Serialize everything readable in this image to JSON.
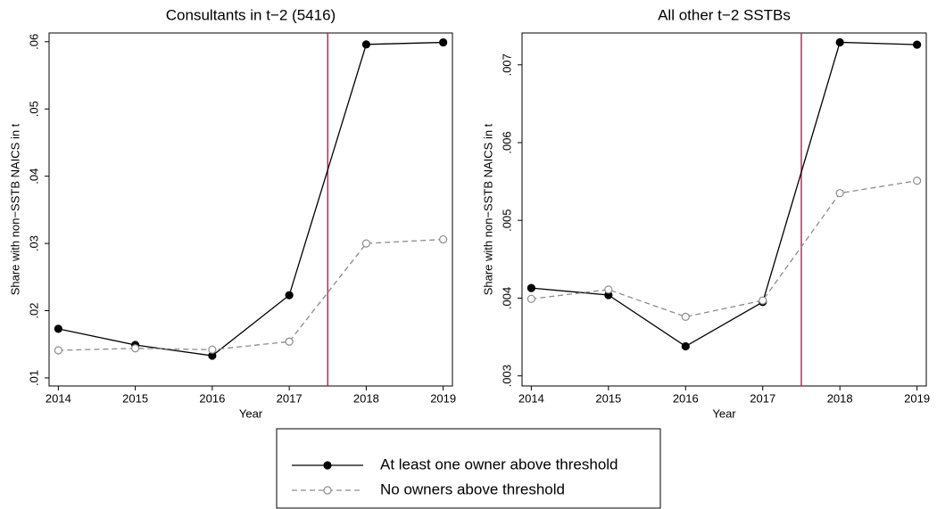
{
  "chart_data": [
    {
      "type": "line",
      "title": "Consultants in t−2 (5416)",
      "xlabel": "Year",
      "ylabel": "Share with non−SSTB NAICS in t",
      "x": [
        2014,
        2015,
        2016,
        2017,
        2018,
        2019
      ],
      "series": [
        {
          "name": "At least one owner above threshold",
          "color": "#000000",
          "values": [
            0.0173,
            0.0149,
            0.0133,
            0.0223,
            0.0596,
            0.0599
          ]
        },
        {
          "name": "No owners above threshold",
          "color": "#8c8c8c",
          "values": [
            0.0141,
            0.0144,
            0.0142,
            0.0154,
            0.03,
            0.0306
          ]
        }
      ],
      "xlim": [
        2013.88,
        2019.12
      ],
      "xticks": [
        2014,
        2015,
        2016,
        2017,
        2018,
        2019
      ],
      "ylim": [
        0.0088,
        0.0613
      ],
      "yticks": [
        {
          "value": 0.01,
          "label": ".01"
        },
        {
          "value": 0.02,
          "label": ".02"
        },
        {
          "value": 0.03,
          "label": ".03"
        },
        {
          "value": 0.04,
          "label": ".04"
        },
        {
          "value": 0.05,
          "label": ".05"
        },
        {
          "value": 0.06,
          "label": ".06"
        }
      ],
      "vline": 2017.5,
      "vline_color": "#c8245a"
    },
    {
      "type": "line",
      "title": "All other t−2 SSTBs",
      "xlabel": "Year",
      "ylabel": "Share with non−SSTB NAICS in t",
      "x": [
        2014,
        2015,
        2016,
        2017,
        2018,
        2019
      ],
      "series": [
        {
          "name": "At least one owner above threshold",
          "color": "#000000",
          "values": [
            0.00413,
            0.00404,
            0.00338,
            0.00395,
            0.00729,
            0.00726
          ]
        },
        {
          "name": "No owners above threshold",
          "color": "#8c8c8c",
          "values": [
            0.00399,
            0.00411,
            0.00376,
            0.00397,
            0.00535,
            0.00551
          ]
        }
      ],
      "xlim": [
        2013.88,
        2019.12
      ],
      "xticks": [
        2014,
        2015,
        2016,
        2017,
        2018,
        2019
      ],
      "ylim": [
        0.00287,
        0.00741
      ],
      "yticks": [
        {
          "value": 0.003,
          "label": ".003"
        },
        {
          "value": 0.004,
          "label": ".004"
        },
        {
          "value": 0.005,
          "label": ".005"
        },
        {
          "value": 0.006,
          "label": ".006"
        },
        {
          "value": 0.007,
          "label": ".007"
        }
      ],
      "vline": 2017.5,
      "vline_color": "#c8245a"
    }
  ]
}
